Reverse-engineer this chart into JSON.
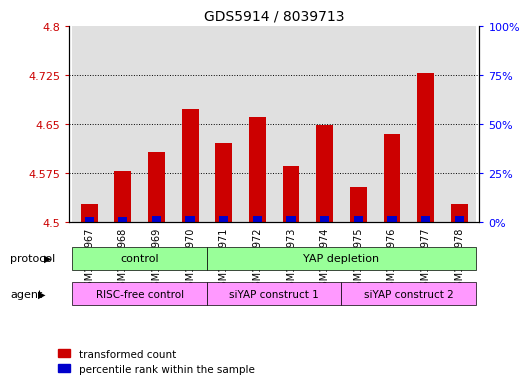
{
  "title": "GDS5914 / 8039713",
  "samples": [
    "GSM1517967",
    "GSM1517968",
    "GSM1517969",
    "GSM1517970",
    "GSM1517971",
    "GSM1517972",
    "GSM1517973",
    "GSM1517974",
    "GSM1517975",
    "GSM1517976",
    "GSM1517977",
    "GSM1517978"
  ],
  "red_values": [
    4.527,
    4.578,
    4.607,
    4.672,
    4.62,
    4.66,
    4.585,
    4.648,
    4.554,
    4.635,
    4.728,
    4.527
  ],
  "blue_values": [
    4.508,
    4.508,
    4.51,
    4.51,
    4.509,
    4.51,
    4.509,
    4.51,
    4.509,
    4.51,
    4.51,
    4.509
  ],
  "ymin": 4.5,
  "ymax": 4.8,
  "y_ticks_left": [
    4.5,
    4.575,
    4.65,
    4.725,
    4.8
  ],
  "y_ticks_right": [
    0,
    25,
    50,
    75,
    100
  ],
  "right_labels": [
    "0%",
    "25%",
    "50%",
    "75%",
    "100%"
  ],
  "bar_width": 0.5,
  "red_color": "#cc0000",
  "blue_color": "#0000cc",
  "protocol_labels": [
    "control",
    "YAP depletion"
  ],
  "protocol_color": "#99ff99",
  "agent_labels": [
    "RISC-free control",
    "siYAP construct 1",
    "siYAP construct 2"
  ],
  "agent_color": "#ff99ff",
  "bg_color": "#e0e0e0",
  "legend_red": "transformed count",
  "legend_blue": "percentile rank within the sample"
}
